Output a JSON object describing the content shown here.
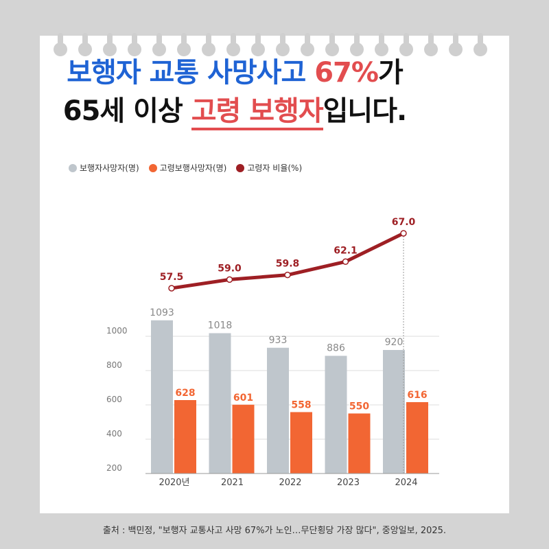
{
  "headline": {
    "line1_a": "보행자 교통 사망사고 ",
    "line1_b": "67%",
    "line1_c": "가",
    "line2_a": "65세 이상 ",
    "line2_b": "고령 보행자",
    "line2_c": "입니다."
  },
  "legend": [
    {
      "label": "보행자사망자(명)",
      "color": "#bfc6cc"
    },
    {
      "label": "고령보행사망자(명)",
      "color": "#f26633"
    },
    {
      "label": "고령자 비율(%)",
      "color": "#9e1f24"
    }
  ],
  "chart_data": {
    "type": "bar",
    "categories": [
      "2020년",
      "2021",
      "2022",
      "2023",
      "2024"
    ],
    "series": [
      {
        "name": "보행자사망자(명)",
        "type": "bar",
        "values": [
          1093,
          1018,
          933,
          886,
          920
        ],
        "labels": [
          "1093",
          "1018",
          "933",
          "886",
          "920"
        ],
        "color": "#bfc6cc"
      },
      {
        "name": "고령보행사망자(명)",
        "type": "bar",
        "values": [
          628,
          601,
          558,
          550,
          616
        ],
        "labels": [
          "628",
          "601",
          "558",
          "550",
          "616"
        ],
        "color": "#f26633"
      },
      {
        "name": "고령자 비율(%)",
        "type": "line",
        "values": [
          57.5,
          59.0,
          59.8,
          62.1,
          67.0
        ],
        "labels": [
          "57.5",
          "59.0",
          "59.8",
          "62.1",
          "67.0"
        ],
        "color": "#9e1f24"
      }
    ],
    "y_ticks": [
      "200",
      "400",
      "600",
      "800",
      "1000"
    ],
    "y_tick_values": [
      200,
      400,
      600,
      800,
      1000
    ],
    "ylim": [
      200,
      1100
    ],
    "grid": true,
    "legend_position": "top-left"
  },
  "source": "출처 : 백민정, \"보행자 교통사고 사망 67%가 노인…무단횡당 가장 많다\", 중앙일보, 2025."
}
